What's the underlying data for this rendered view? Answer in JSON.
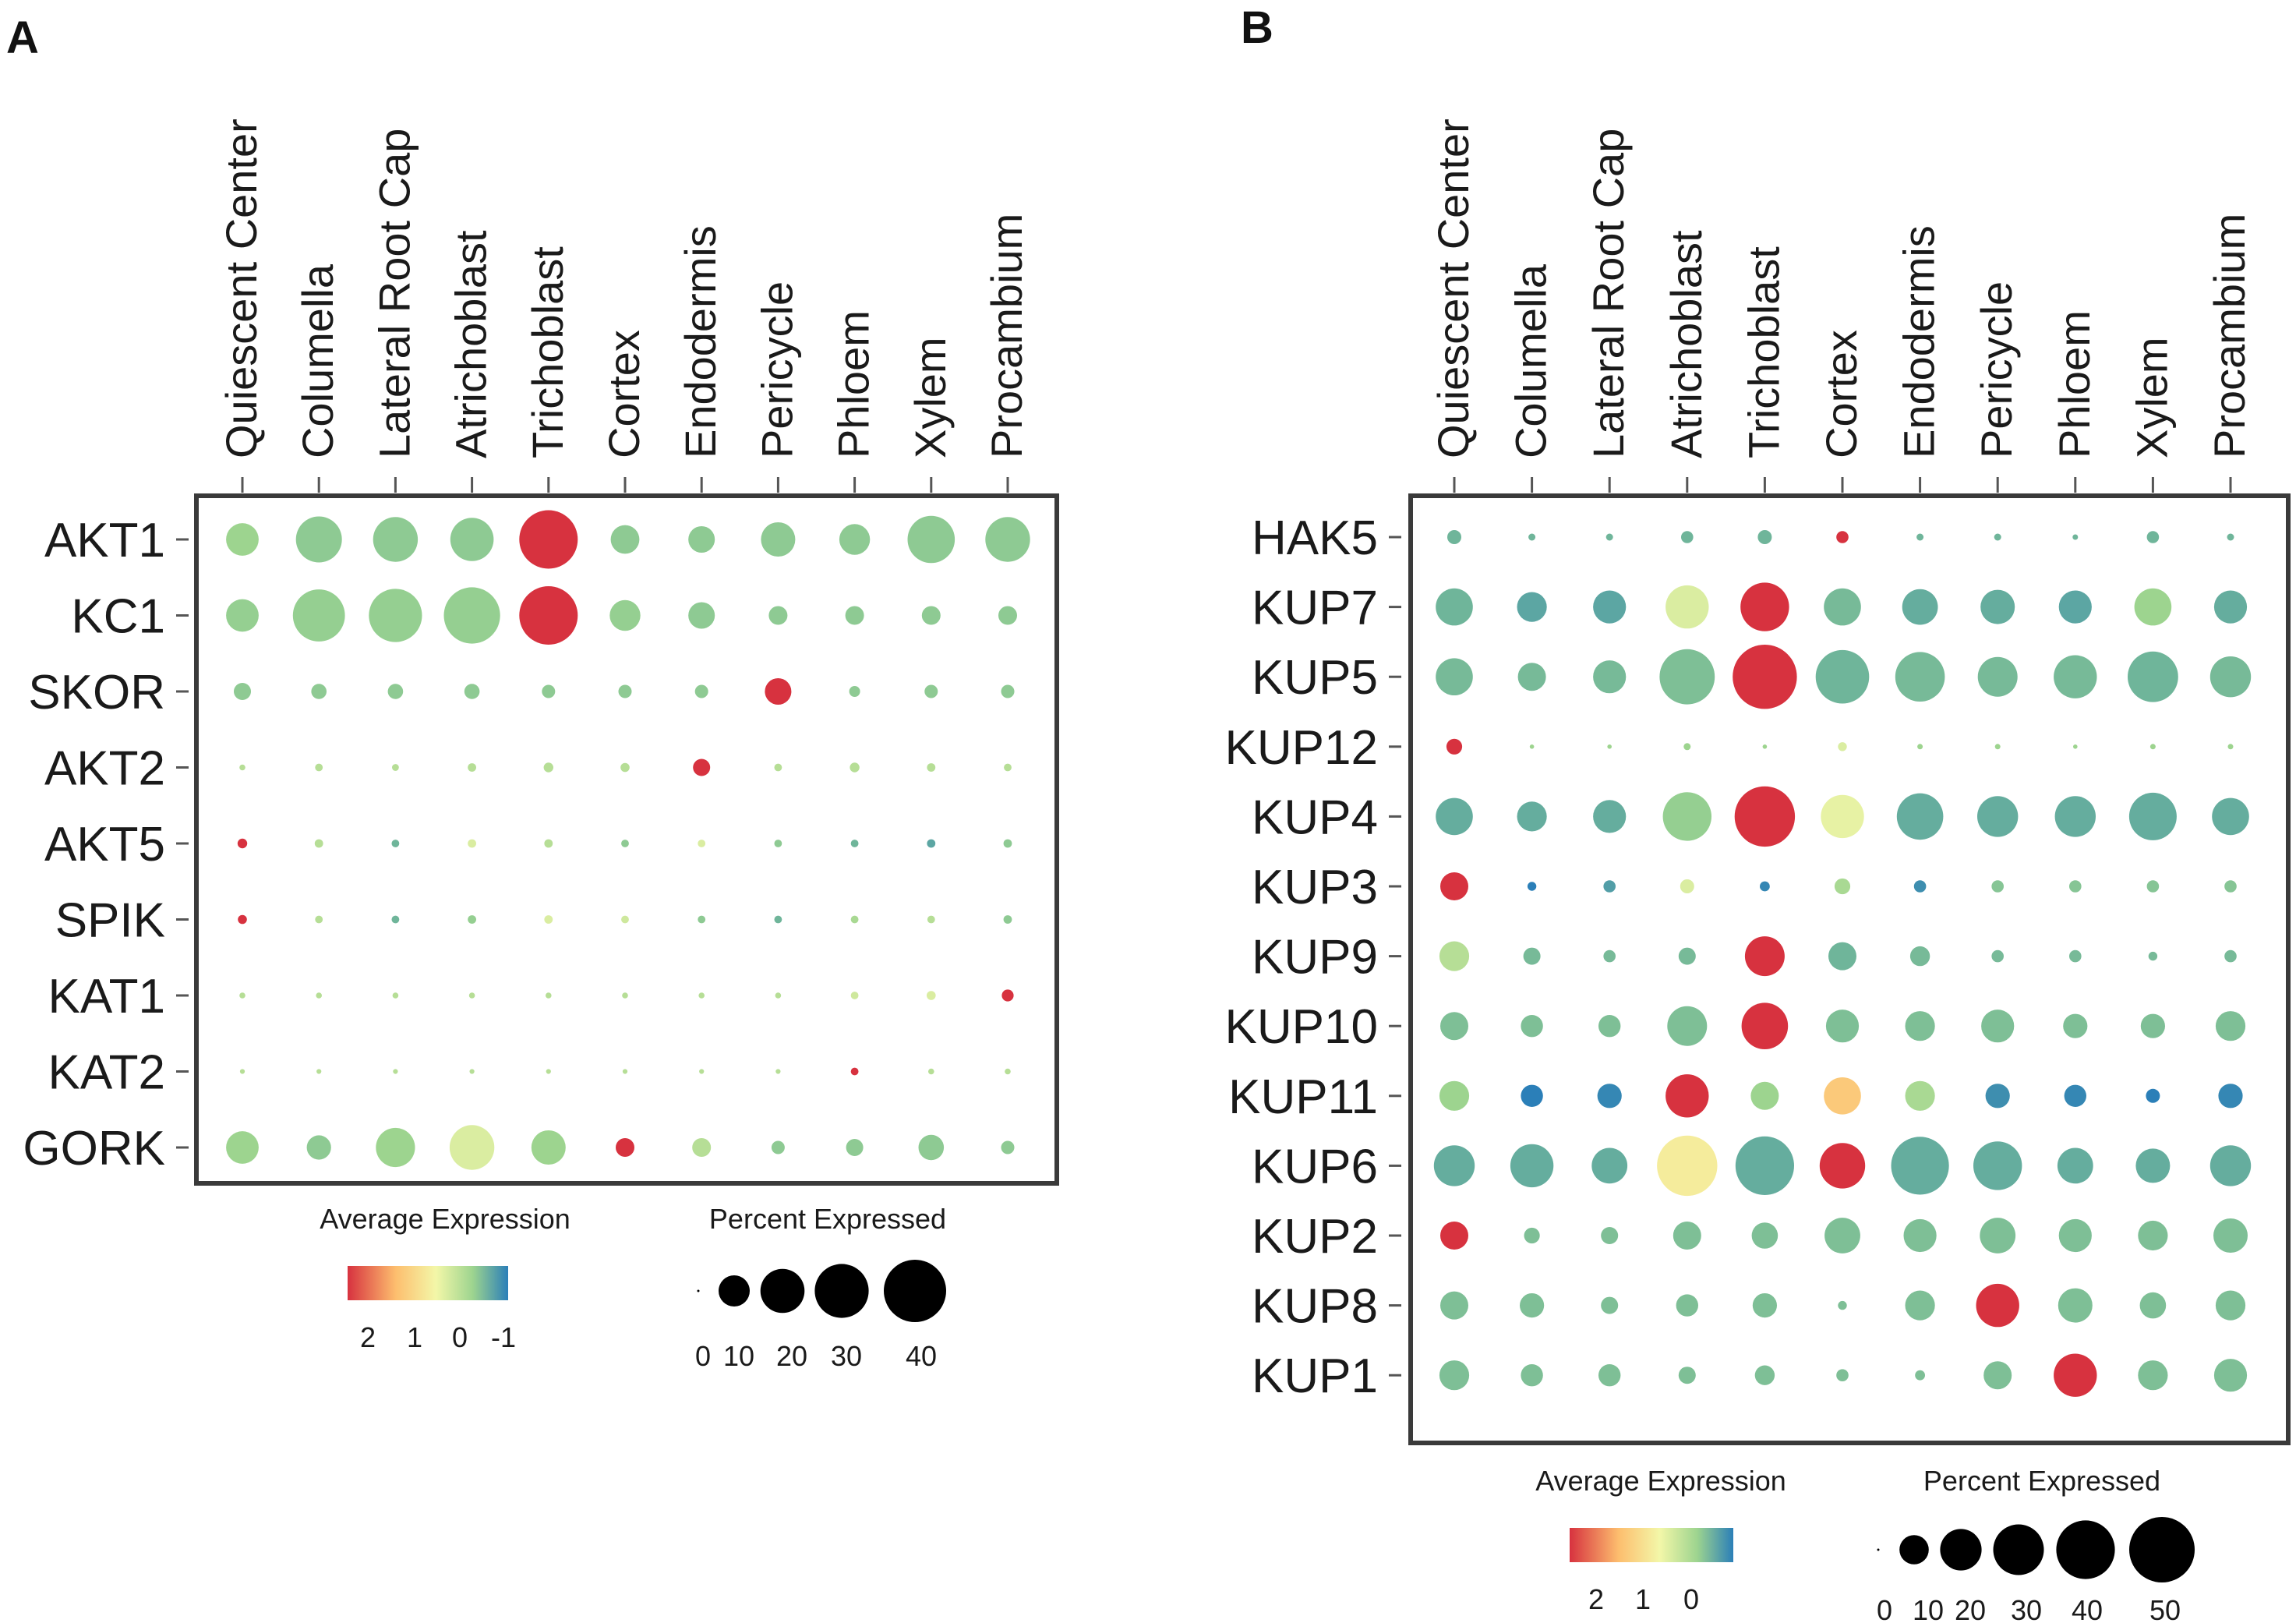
{
  "figure": {
    "panel_a_letter": "A",
    "panel_b_letter": "B"
  },
  "legend_a": {
    "avg_title": "Average Expression",
    "avg_ticks": [
      "2",
      "1",
      "0",
      "-1"
    ],
    "pct_title": "Percent Expressed",
    "pct_values": [
      0,
      10,
      20,
      30,
      40
    ],
    "pct_labels": [
      "0",
      "10",
      "20",
      "30",
      "40"
    ]
  },
  "legend_b": {
    "avg_title": "Average Expression",
    "avg_ticks": [
      "2",
      "1",
      "0"
    ],
    "pct_title": "Percent Expressed",
    "pct_values": [
      0,
      10,
      20,
      30,
      40,
      50
    ],
    "pct_labels": [
      "0",
      "10",
      "20",
      "30",
      "40",
      "50"
    ]
  },
  "colors": {
    "high": "#d7323f",
    "mid_high": "#fdbe6e",
    "mid": "#f3f7a8",
    "mid_low": "#9dd48f",
    "low": "#2b7fb8",
    "frame": "#3a3a3a",
    "text": "#1a1a1a"
  },
  "chart_data": [
    {
      "type": "dotplot",
      "panel": "A",
      "categories": [
        "Quiescent Center",
        "Columella",
        "Lateral Root Cap",
        "Atrichoblast",
        "Trichoblast",
        "Cortex",
        "Endodermis",
        "Pericycle",
        "Phloem",
        "Xylem",
        "Procambium"
      ],
      "genes": [
        "AKT1",
        "KC1",
        "SKOR",
        "AKT2",
        "AKT5",
        "SPIK",
        "KAT1",
        "KAT2",
        "GORK"
      ],
      "color_legend": "Average Expression",
      "color_range": [
        -1,
        2
      ],
      "size_legend": "Percent Expressed",
      "size_range": [
        0,
        40
      ],
      "avg_expression": [
        [
          0.3,
          0.1,
          0.1,
          0.1,
          2.2,
          0.1,
          0.1,
          0.1,
          0.1,
          0.1,
          0.1
        ],
        [
          0.2,
          0.2,
          0.2,
          0.2,
          2.2,
          0.2,
          0.1,
          0.1,
          0.1,
          0.1,
          0.1
        ],
        [
          0.1,
          0.1,
          0.1,
          0.1,
          0.1,
          0.1,
          0.1,
          2.2,
          0.1,
          0.1,
          0.1
        ],
        [
          0.5,
          0.5,
          0.5,
          0.5,
          0.5,
          0.5,
          2.2,
          0.5,
          0.5,
          0.5,
          0.5
        ],
        [
          2.2,
          0.5,
          -0.3,
          0.8,
          0.5,
          0.1,
          0.8,
          0.1,
          -0.3,
          -0.5,
          0.1
        ],
        [
          2.2,
          0.5,
          -0.3,
          0.2,
          0.8,
          0.7,
          0.1,
          -0.3,
          0.4,
          0.5,
          0.1
        ],
        [
          0.5,
          0.5,
          0.5,
          0.5,
          0.5,
          0.5,
          0.5,
          0.5,
          0.7,
          0.8,
          2.2
        ],
        [
          0.5,
          0.5,
          0.5,
          0.5,
          0.5,
          0.5,
          0.5,
          0.5,
          2.2,
          0.5,
          0.5
        ],
        [
          0.3,
          0.1,
          0.3,
          0.8,
          0.3,
          2.2,
          0.5,
          0.1,
          0.1,
          0.1,
          0.1
        ]
      ],
      "percent_expressed": [
        [
          9,
          18,
          17,
          16,
          29,
          7,
          6,
          10,
          8,
          19,
          17
        ],
        [
          9,
          23,
          24,
          27,
          29,
          8,
          6,
          3,
          3,
          3,
          3
        ],
        [
          2.5,
          2,
          2,
          2,
          1.5,
          1.5,
          1.5,
          6,
          1,
          1.5,
          1.5
        ],
        [
          0.3,
          0.5,
          0.4,
          0.6,
          0.8,
          0.7,
          2.5,
          0.5,
          0.8,
          0.6,
          0.5
        ],
        [
          0.8,
          0.6,
          0.5,
          0.6,
          0.6,
          0.5,
          0.5,
          0.5,
          0.5,
          0.6,
          0.6
        ],
        [
          0.7,
          0.5,
          0.5,
          0.6,
          0.6,
          0.5,
          0.5,
          0.5,
          0.5,
          0.5,
          0.6
        ],
        [
          0.3,
          0.3,
          0.3,
          0.3,
          0.3,
          0.3,
          0.3,
          0.3,
          0.5,
          0.7,
          1.2
        ],
        [
          0.2,
          0.2,
          0.2,
          0.2,
          0.2,
          0.2,
          0.2,
          0.2,
          0.5,
          0.3,
          0.3
        ],
        [
          9,
          5,
          13,
          17,
          10,
          3,
          3,
          1.5,
          2.5,
          5.5,
          1.5
        ]
      ]
    },
    {
      "type": "dotplot",
      "panel": "B",
      "categories": [
        "Quiescent Center",
        "Columella",
        "Lateral Root Cap",
        "Atrichoblast",
        "Trichoblast",
        "Cortex",
        "Endodermis",
        "Pericycle",
        "Phloem",
        "Xylem",
        "Procambium"
      ],
      "genes": [
        "HAK5",
        "KUP7",
        "KUP5",
        "KUP12",
        "KUP4",
        "KUP3",
        "KUP9",
        "KUP10",
        "KUP11",
        "KUP6",
        "KUP2",
        "KUP8",
        "KUP1"
      ],
      "color_legend": "Average Expression",
      "color_range": [
        -1,
        2
      ],
      "size_legend": "Percent Expressed",
      "size_range": [
        0,
        50
      ],
      "avg_expression": [
        [
          -0.3,
          -0.3,
          -0.3,
          -0.3,
          -0.3,
          2.2,
          -0.3,
          -0.3,
          -0.3,
          -0.3,
          -0.3
        ],
        [
          -0.3,
          -0.5,
          -0.5,
          0.8,
          2.2,
          -0.2,
          -0.4,
          -0.4,
          -0.5,
          0.3,
          -0.4
        ],
        [
          -0.2,
          -0.2,
          -0.2,
          -0.1,
          2.2,
          -0.3,
          -0.2,
          -0.2,
          -0.2,
          -0.3,
          -0.2
        ],
        [
          2.2,
          0.3,
          0.3,
          0.3,
          0.3,
          0.8,
          0.3,
          0.3,
          0.3,
          0.3,
          0.3
        ],
        [
          -0.4,
          -0.4,
          -0.4,
          0.2,
          2.2,
          0.9,
          -0.4,
          -0.4,
          -0.4,
          -0.4,
          -0.4
        ],
        [
          2.2,
          -1.0,
          -0.6,
          0.8,
          -0.9,
          0.4,
          -0.8,
          0.0,
          0.0,
          0.0,
          0.0
        ],
        [
          0.5,
          -0.2,
          -0.2,
          -0.2,
          2.2,
          -0.3,
          -0.2,
          -0.2,
          -0.2,
          -0.2,
          -0.2
        ],
        [
          -0.1,
          -0.1,
          -0.1,
          -0.1,
          2.2,
          -0.1,
          -0.1,
          -0.1,
          -0.1,
          -0.1,
          -0.1
        ],
        [
          0.3,
          -1.0,
          -0.9,
          2.2,
          0.3,
          1.4,
          0.4,
          -0.8,
          -0.9,
          -1.0,
          -0.9
        ],
        [
          -0.4,
          -0.4,
          -0.4,
          1.1,
          -0.4,
          2.2,
          -0.4,
          -0.4,
          -0.4,
          -0.4,
          -0.4
        ],
        [
          2.2,
          -0.1,
          -0.1,
          -0.1,
          -0.1,
          -0.1,
          -0.1,
          -0.1,
          -0.1,
          -0.1,
          -0.1
        ],
        [
          -0.1,
          -0.1,
          -0.1,
          -0.1,
          -0.1,
          -0.1,
          -0.1,
          2.2,
          -0.1,
          -0.1,
          -0.1
        ],
        [
          -0.1,
          -0.1,
          -0.1,
          -0.1,
          -0.1,
          -0.1,
          -0.1,
          -0.1,
          2.2,
          -0.1,
          -0.1
        ]
      ],
      "percent_expressed": [
        [
          2,
          0.5,
          0.5,
          1.5,
          2,
          1.5,
          0.5,
          0.5,
          0.3,
          1.5,
          0.5
        ],
        [
          14,
          9,
          11,
          19,
          24,
          14,
          13,
          12,
          11,
          14,
          11
        ],
        [
          14,
          8,
          11,
          31,
          42,
          29,
          25,
          16,
          19,
          26,
          17
        ],
        [
          2.5,
          0.2,
          0.2,
          0.5,
          0.2,
          0.8,
          0.3,
          0.3,
          0.2,
          0.3,
          0.3
        ],
        [
          14,
          9,
          11,
          24,
          37,
          19,
          22,
          17,
          17,
          23,
          14
        ],
        [
          8,
          0.8,
          1.5,
          2,
          1,
          2.5,
          1.5,
          1.5,
          1.5,
          1.5,
          1.5
        ],
        [
          9,
          3,
          1.5,
          3,
          16,
          8,
          4,
          1.5,
          1.5,
          0.8,
          1.5
        ],
        [
          8,
          5,
          5,
          16,
          22,
          11,
          9,
          11,
          6,
          6,
          9
        ],
        [
          9,
          5,
          6,
          19,
          8,
          14,
          9,
          6,
          5,
          2,
          6
        ],
        [
          17,
          19,
          13,
          37,
          35,
          21,
          34,
          24,
          13,
          12,
          17
        ],
        [
          8,
          2.5,
          3,
          8,
          7,
          13,
          11,
          13,
          11,
          9,
          12
        ],
        [
          8,
          6,
          3,
          5,
          6,
          0.8,
          9,
          19,
          12,
          7,
          9
        ],
        [
          9,
          5,
          5,
          3,
          4,
          1.5,
          1,
          8,
          19,
          9,
          11
        ]
      ]
    }
  ]
}
